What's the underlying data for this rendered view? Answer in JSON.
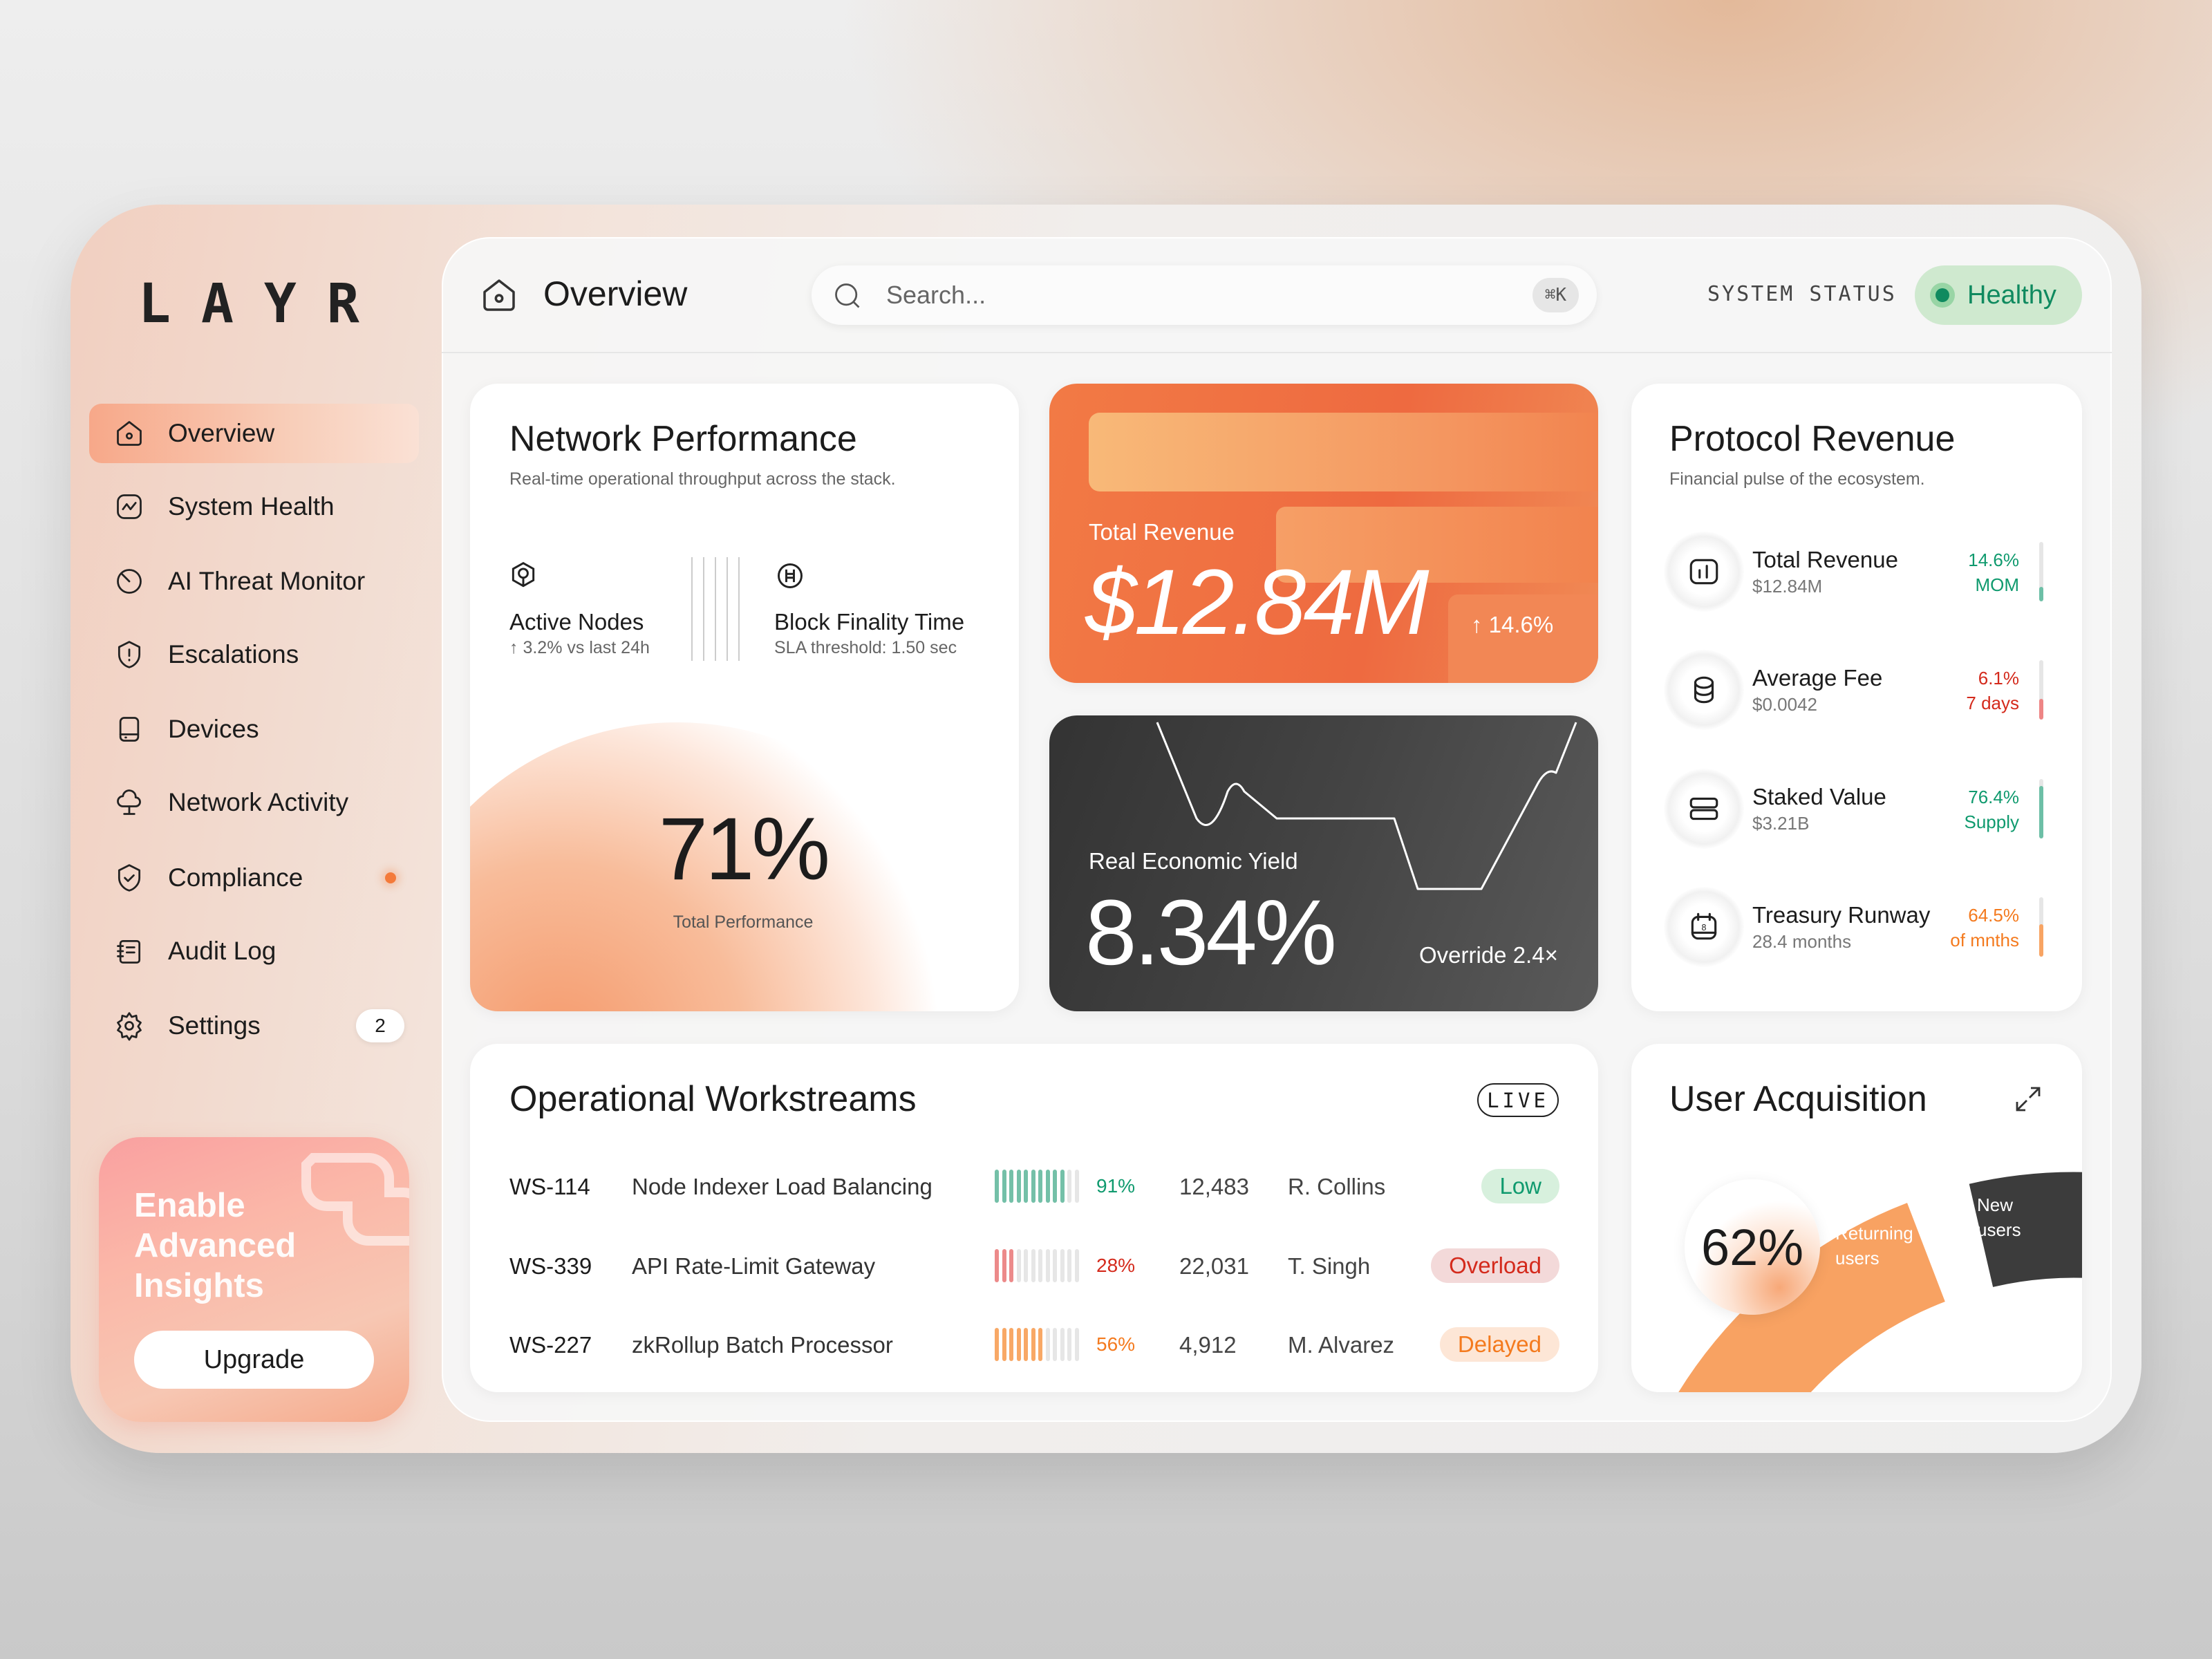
{
  "brand": {
    "logo": "LAYR"
  },
  "sidebar": {
    "items": [
      {
        "label": "Overview",
        "icon": "home-icon",
        "active": true
      },
      {
        "label": "System Health",
        "icon": "pulse-icon"
      },
      {
        "label": "AI Threat Monitor",
        "icon": "radar-icon"
      },
      {
        "label": "Escalations",
        "icon": "alert-icon"
      },
      {
        "label": "Devices",
        "icon": "device-icon"
      },
      {
        "label": "Network Activity",
        "icon": "network-icon"
      },
      {
        "label": "Compliance",
        "icon": "shield-check-icon",
        "dot": true
      },
      {
        "label": "Audit Log",
        "icon": "notebook-icon"
      },
      {
        "label": "Settings",
        "icon": "gear-icon",
        "badge": "2"
      }
    ]
  },
  "upgrade": {
    "title": "Enable Advanced Insights",
    "button": "Upgrade"
  },
  "header": {
    "title": "Overview",
    "search_placeholder": "Search...",
    "shortcut": "⌘K",
    "status_label": "SYSTEM STATUS",
    "status_value": "Healthy",
    "status_color": "#0f8a5f"
  },
  "network": {
    "title": "Network Performance",
    "subtitle": "Real-time operational throughput across the stack.",
    "metrics": [
      {
        "label": "Active Nodes",
        "sub": "↑ 3.2% vs last 24h"
      },
      {
        "label": "Block Finality Time",
        "sub": "SLA threshold: 1.50 sec"
      }
    ],
    "performance": "71%",
    "performance_label": "Total Performance"
  },
  "revenue_card": {
    "label": "Total Revenue",
    "value": "$12.84M",
    "change": "↑ 14.6%"
  },
  "yield_card": {
    "label": "Real Economic Yield",
    "value": "8.34%",
    "override": "Override 2.4×"
  },
  "protocol": {
    "title": "Protocol Revenue",
    "subtitle": "Financial pulse of the ecosystem.",
    "rows": [
      {
        "label": "Total Revenue",
        "value": "$12.84M",
        "pct": "14.6%",
        "period": "MOM",
        "color": "#0f9a6e",
        "bar": "#6dbfa6",
        "level": 0.25,
        "icon": "bar-chart-icon"
      },
      {
        "label": "Average Fee",
        "value": "$0.0042",
        "pct": "6.1%",
        "period": "7 days",
        "color": "#d42a1c",
        "bar": "#ee8585",
        "level": 0.35,
        "icon": "coins-icon"
      },
      {
        "label": "Staked Value",
        "value": "$3.21B",
        "pct": "76.4%",
        "period": "Supply",
        "color": "#0f9a6e",
        "bar": "#6dbfa6",
        "level": 0.88,
        "icon": "server-icon"
      },
      {
        "label": "Treasury Runway",
        "value": "28.4 months",
        "pct": "64.5%",
        "period": "of mnths",
        "color": "#f47a1e",
        "bar": "#f8a463",
        "level": 0.55,
        "icon": "calendar-icon"
      }
    ]
  },
  "workstreams": {
    "title": "Operational Workstreams",
    "live": "LIVE",
    "rows": [
      {
        "id": "WS-114",
        "name": "Node Indexer Load Balancing",
        "pct": "91%",
        "segments_filled": 10,
        "count": "12,483",
        "owner": "R. Collins",
        "status": "Low",
        "color": "#0f9a6e",
        "bar": "#74c0a8",
        "badge_bg": "#d7f0dd"
      },
      {
        "id": "WS-339",
        "name": "API Rate-Limit Gateway",
        "pct": "28%",
        "segments_filled": 3,
        "count": "22,031",
        "owner": "T. Singh",
        "status": "Overload",
        "color": "#d42a1c",
        "bar": "#ec8a8a",
        "badge_bg": "#f3d9d9"
      },
      {
        "id": "WS-227",
        "name": "zkRollup Batch Processor",
        "pct": "56%",
        "segments_filled": 7,
        "count": "4,912",
        "owner": "M. Alvarez",
        "status": "Delayed",
        "color": "#f47a1e",
        "bar": "#f8a866",
        "badge_bg": "#fde6d6"
      }
    ]
  },
  "acquisition": {
    "title": "User Acquisition",
    "value": "62%",
    "returning_label": "Returning users",
    "new_label": "New users",
    "returning_color": "#f8a262",
    "new_color": "#3c3c3c"
  }
}
